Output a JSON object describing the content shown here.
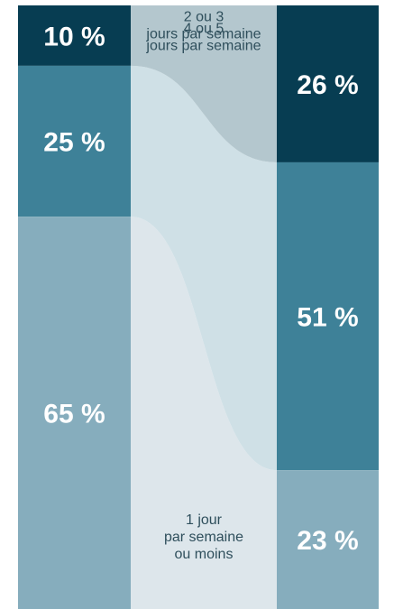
{
  "chart_data": {
    "type": "area",
    "columns": [
      {
        "values": [
          10,
          25,
          65
        ]
      },
      {
        "values": [
          26,
          51,
          23
        ]
      }
    ],
    "bands": [
      {
        "label_lines": [
          "4 ou 5",
          "jours par semaine"
        ]
      },
      {
        "label_lines": [
          "2 ou 3",
          "jours par semaine"
        ]
      },
      {
        "label_lines": [
          "1 jour",
          "par semaine",
          "ou moins"
        ]
      }
    ],
    "percent_labels": {
      "left": [
        "10 %",
        "25 %",
        "65 %"
      ],
      "right": [
        "26 %",
        "51 %",
        "23 %"
      ]
    }
  },
  "colors": {
    "dark": "#073d52",
    "medium": "#3e8198",
    "light": "#86adbd",
    "band_top": "#b4c7ce",
    "band_mid": "#cfe0e6",
    "band_low": "#dde6eb"
  }
}
